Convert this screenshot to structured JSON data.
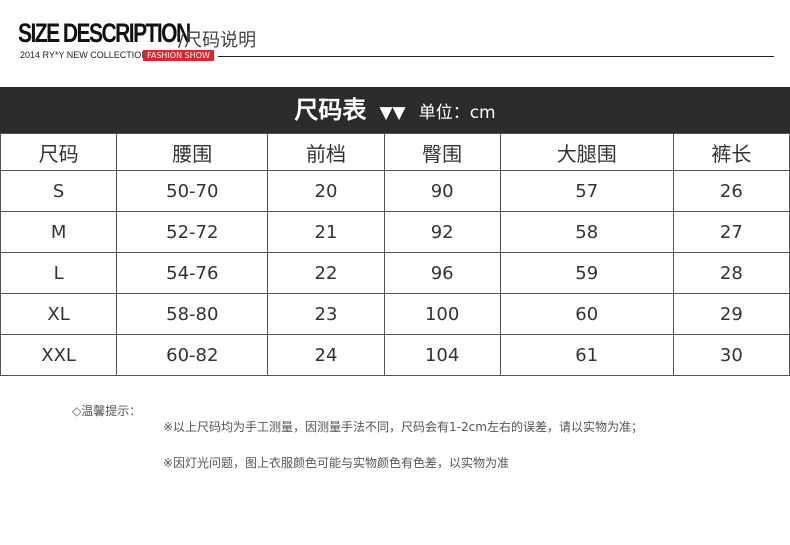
{
  "brand": {
    "title": "SIZE DESCRIPTION",
    "subtitle": "/尺码说明",
    "tagline": "2014 RY*Y NEW COLLECTION",
    "badge": "FASHION SHOW",
    "badge_color": "#e0262b"
  },
  "table": {
    "title": "尺码表",
    "arrows": "▼▼",
    "unit": "单位：cm",
    "headers": [
      "尺码",
      "腰围",
      "前档",
      "臀围",
      "大腿围",
      "裤长"
    ],
    "rows": [
      [
        "S",
        "50-70",
        "20",
        "90",
        "57",
        "26"
      ],
      [
        "M",
        "52-72",
        "21",
        "92",
        "58",
        "27"
      ],
      [
        "L",
        "54-76",
        "22",
        "96",
        "59",
        "28"
      ],
      [
        "XL",
        "58-80",
        "23",
        "100",
        "60",
        "29"
      ],
      [
        "XXL",
        "60-82",
        "24",
        "104",
        "61",
        "30"
      ]
    ]
  },
  "notes": {
    "label": "◇温馨提示：",
    "items": [
      "※以上尺码均为手工测量，因测量手法不同，尺码会有1-2cm左右的误差，请以实物为准；",
      "※因灯光问题，图上衣服颜色可能与实物颜色有色差，以实物为准"
    ]
  }
}
